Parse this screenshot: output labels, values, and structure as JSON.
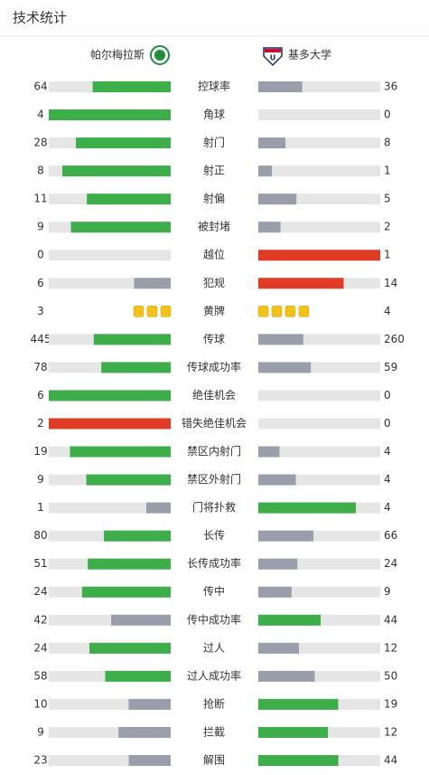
{
  "header": {
    "title": "技术统计"
  },
  "teams": {
    "home": "帕尔梅拉斯",
    "away": "基多大学"
  },
  "colors": {
    "green": "#3dae49",
    "gray": "#9a9eab",
    "red": "#e03b24",
    "track": "#e6e6e6",
    "card": "#f2c21b"
  },
  "rows": [
    {
      "label": "控球率",
      "home": 64,
      "away": 36,
      "colors": [
        "green",
        "gray"
      ]
    },
    {
      "label": "角球",
      "home": 4,
      "away": 0,
      "colors": [
        "green",
        "gray"
      ]
    },
    {
      "label": "射门",
      "home": 28,
      "away": 8,
      "colors": [
        "green",
        "gray"
      ]
    },
    {
      "label": "射正",
      "home": 8,
      "away": 1,
      "colors": [
        "green",
        "gray"
      ]
    },
    {
      "label": "射偏",
      "home": 11,
      "away": 5,
      "colors": [
        "green",
        "gray"
      ]
    },
    {
      "label": "被封堵",
      "home": 9,
      "away": 2,
      "colors": [
        "green",
        "gray"
      ]
    },
    {
      "label": "越位",
      "home": 0,
      "away": 1,
      "colors": [
        "gray",
        "red"
      ]
    },
    {
      "label": "犯规",
      "home": 6,
      "away": 14,
      "colors": [
        "gray",
        "red"
      ]
    },
    {
      "label": "黄牌",
      "home": 3,
      "away": 4,
      "marker": "cards",
      "colors": [
        "card",
        "card"
      ]
    },
    {
      "label": "传球",
      "home": 445,
      "away": 260,
      "colors": [
        "green",
        "gray"
      ]
    },
    {
      "label": "传球成功率",
      "home": 78,
      "away": 59,
      "colors": [
        "green",
        "gray"
      ]
    },
    {
      "label": "绝佳机会",
      "home": 6,
      "away": 0,
      "colors": [
        "green",
        "gray"
      ]
    },
    {
      "label": "错失绝佳机会",
      "home": 2,
      "away": 0,
      "colors": [
        "red",
        "gray"
      ]
    },
    {
      "label": "禁区内射门",
      "home": 19,
      "away": 4,
      "colors": [
        "green",
        "gray"
      ]
    },
    {
      "label": "禁区外射门",
      "home": 9,
      "away": 4,
      "colors": [
        "green",
        "gray"
      ]
    },
    {
      "label": "门将扑救",
      "home": 1,
      "away": 4,
      "colors": [
        "gray",
        "green"
      ]
    },
    {
      "label": "长传",
      "home": 80,
      "away": 66,
      "colors": [
        "green",
        "gray"
      ]
    },
    {
      "label": "长传成功率",
      "home": 51,
      "away": 24,
      "colors": [
        "green",
        "gray"
      ]
    },
    {
      "label": "传中",
      "home": 24,
      "away": 9,
      "colors": [
        "green",
        "gray"
      ]
    },
    {
      "label": "传中成功率",
      "home": 42,
      "away": 44,
      "colors": [
        "gray",
        "green"
      ]
    },
    {
      "label": "过人",
      "home": 24,
      "away": 12,
      "colors": [
        "green",
        "gray"
      ]
    },
    {
      "label": "过人成功率",
      "home": 58,
      "away": 50,
      "colors": [
        "green",
        "gray"
      ]
    },
    {
      "label": "抢断",
      "home": 10,
      "away": 19,
      "colors": [
        "gray",
        "green"
      ]
    },
    {
      "label": "拦截",
      "home": 9,
      "away": 12,
      "colors": [
        "gray",
        "green"
      ]
    },
    {
      "label": "解围",
      "home": 23,
      "away": 44,
      "colors": [
        "gray",
        "green"
      ]
    }
  ]
}
